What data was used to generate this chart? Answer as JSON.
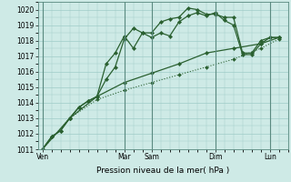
{
  "xlabel": "Pression niveau de la mer( hPa )",
  "ylim": [
    1011,
    1020.5
  ],
  "yticks": [
    1011,
    1012,
    1013,
    1014,
    1015,
    1016,
    1017,
    1018,
    1019,
    1020
  ],
  "bg_color": "#ceeae6",
  "grid_color": "#a0ccc8",
  "line_color": "#2a6030",
  "day_labels": [
    "Ven",
    "Mar",
    "Sam",
    "Dim",
    "Lun"
  ],
  "day_positions": [
    0,
    9,
    12,
    19,
    25
  ],
  "xlim": [
    -0.5,
    27
  ],
  "series": [
    {
      "x": [
        0,
        1,
        2,
        3,
        4,
        5,
        6,
        7,
        8,
        9,
        10,
        11,
        12,
        13,
        14,
        15,
        16,
        17,
        18,
        19,
        20,
        21,
        22,
        23,
        24,
        25,
        26
      ],
      "y": [
        1011.0,
        1011.8,
        1012.2,
        1013.0,
        1013.7,
        1014.1,
        1014.4,
        1015.5,
        1016.3,
        1018.1,
        1018.8,
        1018.5,
        1018.2,
        1018.5,
        1018.3,
        1019.2,
        1019.6,
        1019.8,
        1019.6,
        1019.8,
        1019.3,
        1019.0,
        1017.1,
        1017.1,
        1017.8,
        1018.2,
        1018.2
      ],
      "linestyle": "-",
      "linewidth": 0.9,
      "markersize": 2.2
    },
    {
      "x": [
        0,
        1,
        2,
        3,
        4,
        5,
        6,
        7,
        8,
        9,
        10,
        11,
        12,
        13,
        14,
        15,
        16,
        17,
        18,
        19,
        20,
        21,
        22,
        23,
        24,
        25,
        26
      ],
      "y": [
        1011.0,
        1011.8,
        1012.2,
        1013.0,
        1013.7,
        1014.1,
        1014.4,
        1016.5,
        1017.2,
        1018.3,
        1017.5,
        1018.5,
        1018.5,
        1019.2,
        1019.4,
        1019.5,
        1020.1,
        1020.0,
        1019.7,
        1019.7,
        1019.5,
        1019.5,
        1017.2,
        1017.2,
        1018.0,
        1018.2,
        1018.2
      ],
      "linestyle": "-",
      "linewidth": 0.9,
      "markersize": 2.2
    },
    {
      "x": [
        0,
        3,
        6,
        9,
        12,
        15,
        18,
        21,
        24,
        26
      ],
      "y": [
        1011.0,
        1013.0,
        1014.4,
        1015.3,
        1015.9,
        1016.5,
        1017.2,
        1017.5,
        1017.8,
        1018.2
      ],
      "linestyle": "-",
      "linewidth": 0.9,
      "markersize": 2.2
    },
    {
      "x": [
        0,
        3,
        6,
        9,
        12,
        15,
        18,
        21,
        24,
        26
      ],
      "y": [
        1011.0,
        1013.0,
        1014.2,
        1014.8,
        1015.3,
        1015.8,
        1016.3,
        1016.8,
        1017.5,
        1018.1
      ],
      "linestyle": ":",
      "linewidth": 0.8,
      "markersize": 2.0
    }
  ]
}
